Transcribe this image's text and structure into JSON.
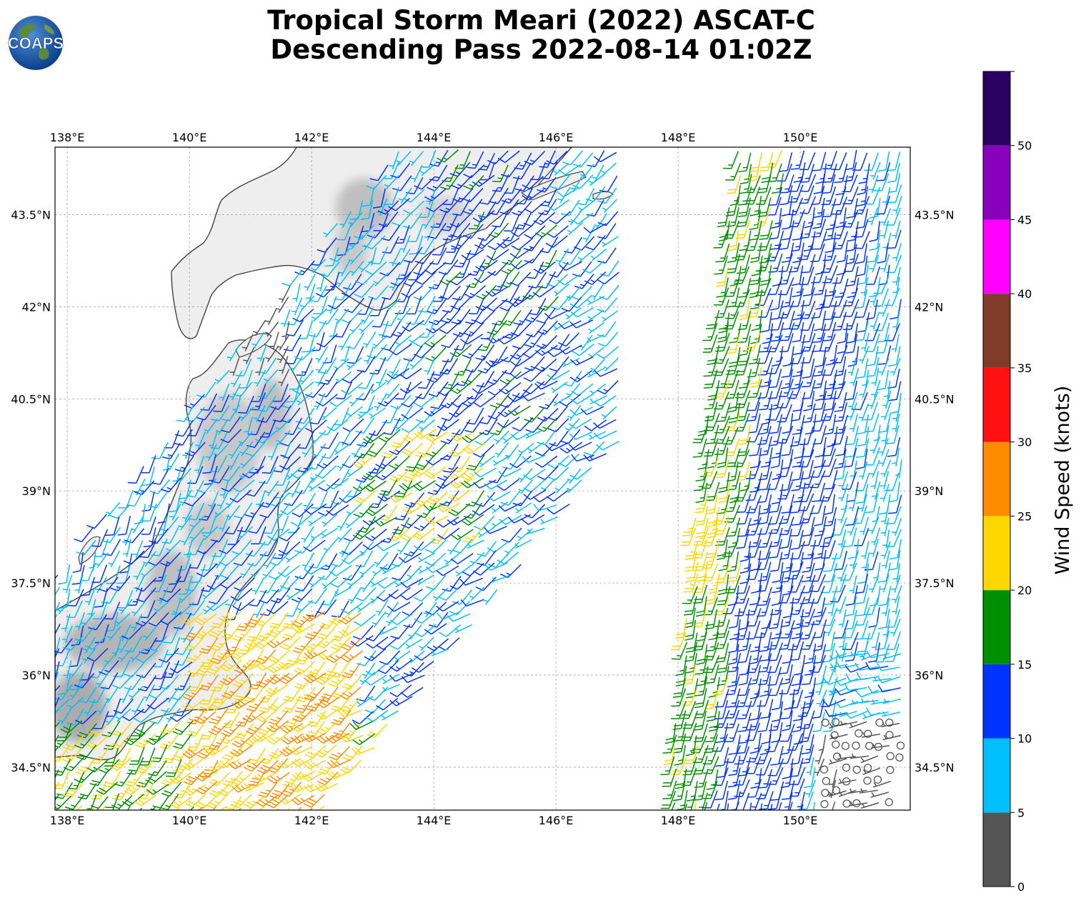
{
  "header": {
    "title_line1": "Tropical Storm Meari (2022) ASCAT-C",
    "title_line2": "Descending Pass 2022-08-14 01:02Z",
    "logo_text": "COAPS"
  },
  "map": {
    "lon_range": [
      137.8,
      151.8
    ],
    "lat_range": [
      33.8,
      44.6
    ],
    "lon_ticks": [
      138,
      140,
      142,
      144,
      146,
      148,
      150
    ],
    "lon_tick_labels": [
      "138°E",
      "140°E",
      "142°E",
      "144°E",
      "146°E",
      "148°E",
      "150°E"
    ],
    "lat_ticks": [
      34.5,
      36,
      37.5,
      39,
      40.5,
      42,
      43.5
    ],
    "lat_tick_labels": [
      "34.5°N",
      "36°N",
      "37.5°N",
      "39°N",
      "40.5°N",
      "42°N",
      "43.5°N"
    ],
    "gridlines": true,
    "coastline_color": "#444444",
    "land_shading": "grayscale terrain"
  },
  "colorbar": {
    "label": "Wind Speed (knots)",
    "ticks": [
      0,
      5,
      10,
      15,
      20,
      25,
      30,
      35,
      40,
      45,
      50
    ],
    "tick_labels": [
      "0",
      "5",
      "10",
      "15",
      "20",
      "25",
      "30",
      "35",
      "40",
      "45",
      "50"
    ],
    "bins": [
      {
        "range": [
          0,
          5
        ],
        "color": "#555555"
      },
      {
        "range": [
          5,
          10
        ],
        "color": "#00bfff"
      },
      {
        "range": [
          10,
          15
        ],
        "color": "#0033ff"
      },
      {
        "range": [
          15,
          20
        ],
        "color": "#008f00"
      },
      {
        "range": [
          20,
          25
        ],
        "color": "#ffd700"
      },
      {
        "range": [
          25,
          30
        ],
        "color": "#ff8c00"
      },
      {
        "range": [
          30,
          35
        ],
        "color": "#ff1010"
      },
      {
        "range": [
          35,
          40
        ],
        "color": "#803c28"
      },
      {
        "range": [
          40,
          45
        ],
        "color": "#ff00ff"
      },
      {
        "range": [
          45,
          50
        ],
        "color": "#8800bb"
      },
      {
        "range": [
          50,
          55
        ],
        "color": "#2a0060"
      }
    ]
  },
  "chart_data": {
    "type": "wind-barb map",
    "title": "Tropical Storm Meari (2022) ASCAT-C Descending Pass 2022-08-14 01:02Z",
    "colorbar_label": "Wind Speed (knots)",
    "xlim": [
      137.8,
      151.8
    ],
    "ylim": [
      33.8,
      44.6
    ],
    "swaths": [
      {
        "name": "western swath",
        "region": "off Honshu / Hokkaido coast",
        "max_speed_kt": 30
      },
      {
        "name": "eastern swath",
        "region": "148E-152E",
        "max_speed_kt": 25
      }
    ]
  }
}
